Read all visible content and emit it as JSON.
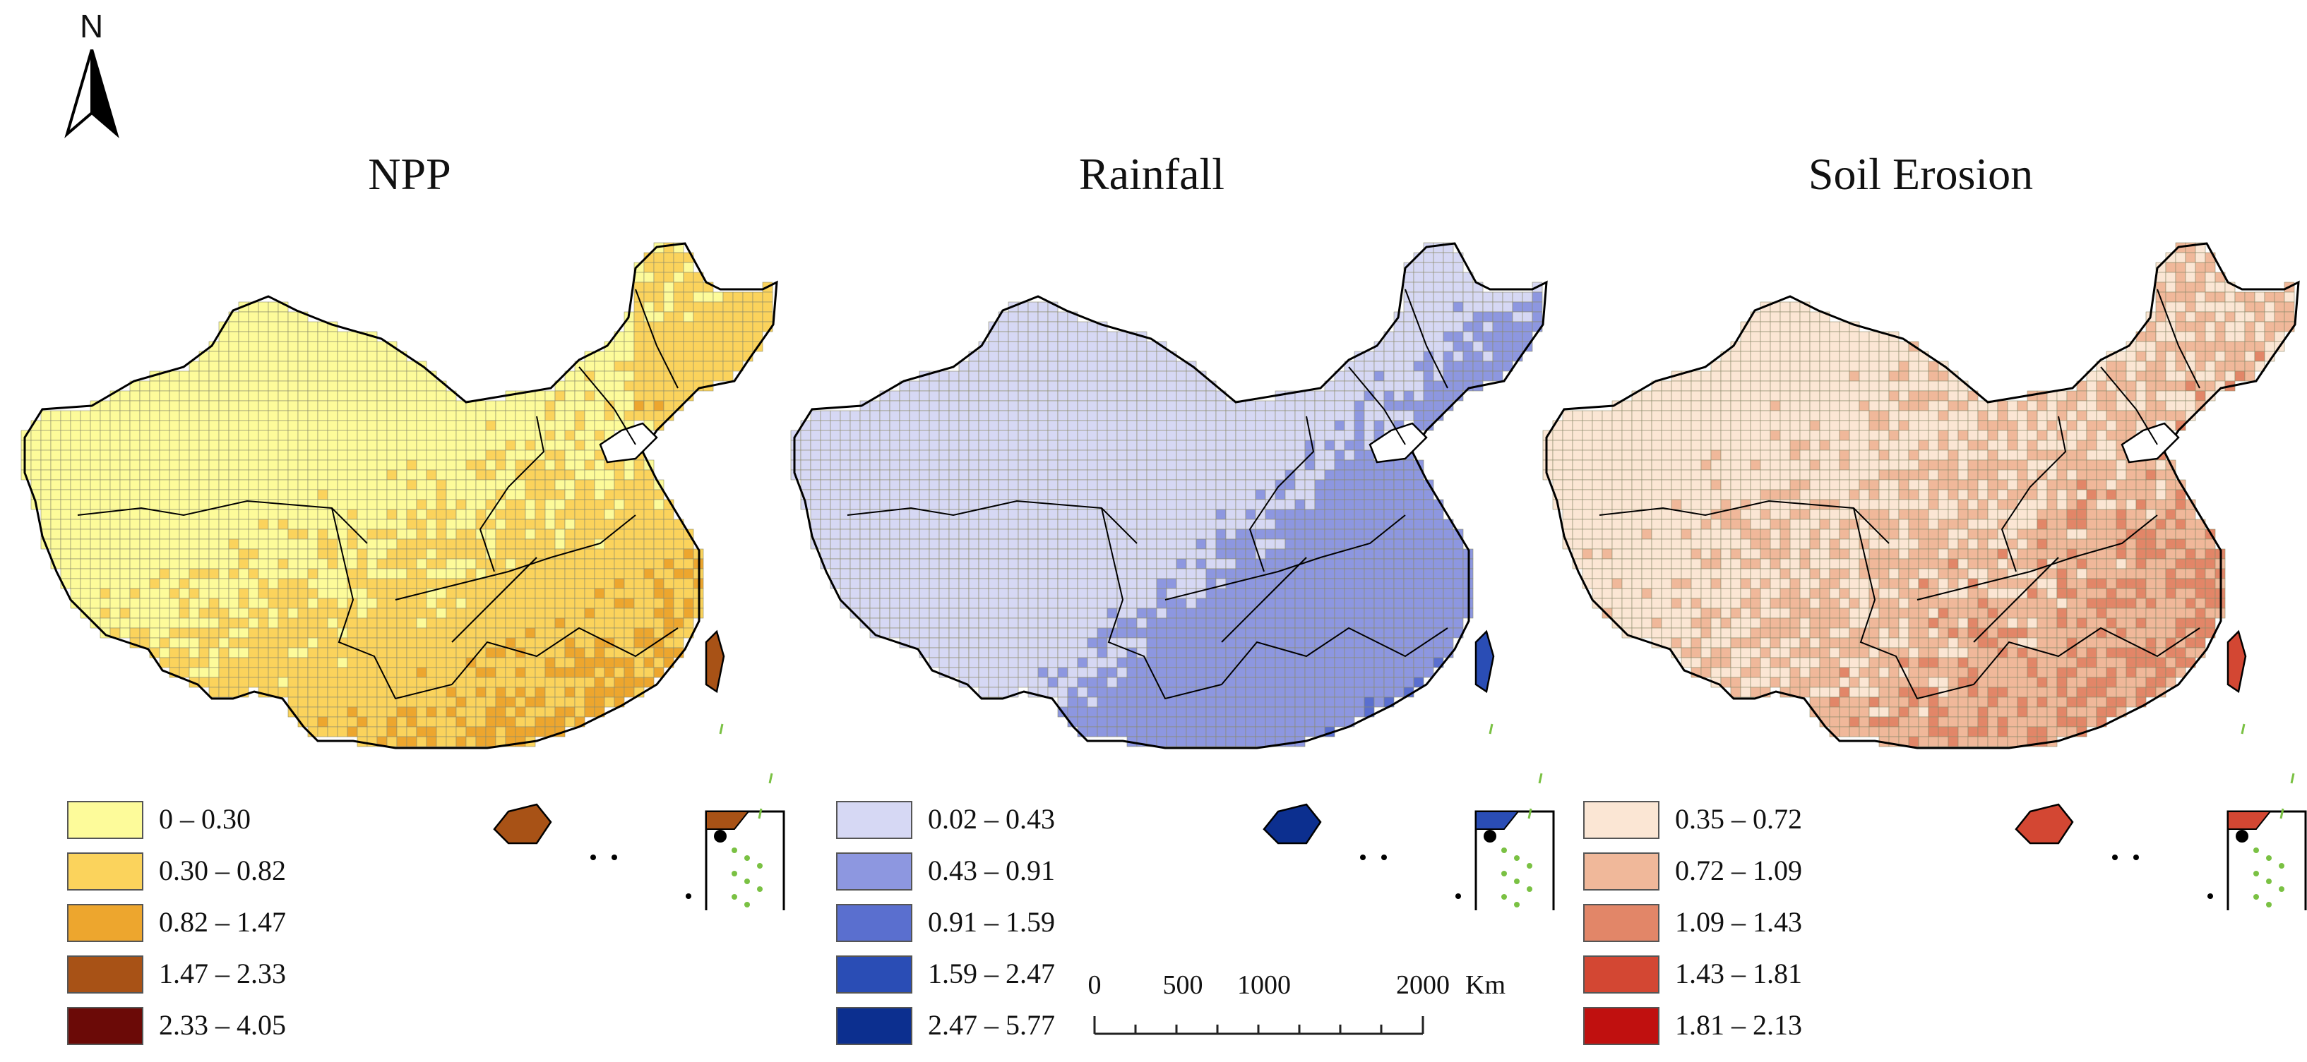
{
  "north_arrow": {
    "label": "N"
  },
  "panels": [
    {
      "title": "NPP",
      "legend": [
        {
          "label": "0 – 0.30",
          "color": "#fdfb9a"
        },
        {
          "label": "0.30 – 0.82",
          "color": "#fbd35c"
        },
        {
          "label": "0.82 – 1.47",
          "color": "#eda62e"
        },
        {
          "label": "1.47 – 2.33",
          "color": "#a85216"
        },
        {
          "label": "2.33 – 4.05",
          "color": "#6b0a07"
        }
      ]
    },
    {
      "title": "Rainfall",
      "legend": [
        {
          "label": "0.02 – 0.43",
          "color": "#d6d8f4"
        },
        {
          "label": "0.43 – 0.91",
          "color": "#8d97e0"
        },
        {
          "label": "0.91 – 1.59",
          "color": "#5a6fcf"
        },
        {
          "label": "1.59 – 2.47",
          "color": "#2a4db5"
        },
        {
          "label": "2.47 – 5.77",
          "color": "#0c2f8f"
        }
      ]
    },
    {
      "title": "Soil Erosion",
      "legend": [
        {
          "label": "0.35 – 0.72",
          "color": "#fbe6d4"
        },
        {
          "label": "0.72 – 1.09",
          "color": "#f0b89a"
        },
        {
          "label": "1.09 – 1.43",
          "color": "#e28668"
        },
        {
          "label": "1.43 – 1.81",
          "color": "#d34733"
        },
        {
          "label": "1.81 – 2.13",
          "color": "#c0100f"
        }
      ]
    }
  ],
  "scale_bar": {
    "labels": [
      "0",
      "500",
      "1000",
      "2000"
    ],
    "unit": "Km"
  }
}
